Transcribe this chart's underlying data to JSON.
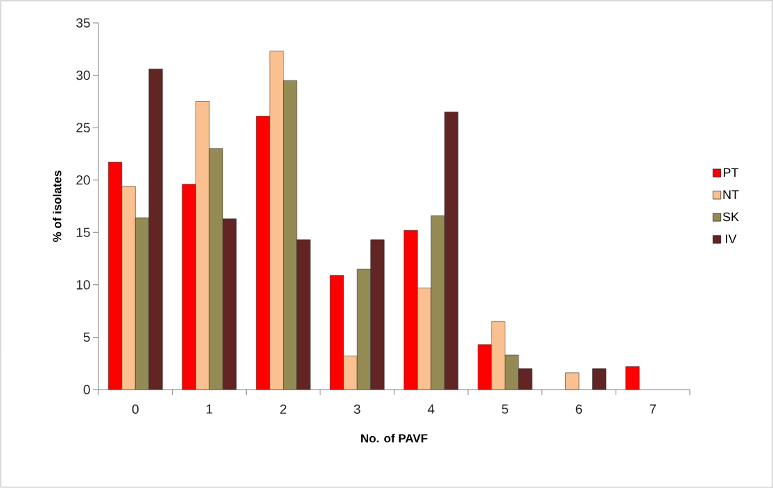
{
  "chart_data": {
    "type": "bar",
    "xlabel": "No. of PAVF",
    "ylabel": "% of isolates",
    "categories": [
      "0",
      "1",
      "2",
      "3",
      "4",
      "5",
      "6",
      "7"
    ],
    "series": [
      {
        "name": "PT",
        "color": "#ff0000",
        "values": [
          21.7,
          19.6,
          26.1,
          10.9,
          15.2,
          4.3,
          0,
          2.2
        ]
      },
      {
        "name": "NT",
        "color": "#fac090",
        "values": [
          19.4,
          27.5,
          32.3,
          3.2,
          9.7,
          6.5,
          1.6,
          0
        ]
      },
      {
        "name": "SK",
        "color": "#948a54",
        "values": [
          16.4,
          23.0,
          29.5,
          11.5,
          16.6,
          3.3,
          0,
          0
        ]
      },
      {
        "name": "IV",
        "color": "#632523",
        "values": [
          30.6,
          16.3,
          14.3,
          14.3,
          26.5,
          2.0,
          2.0,
          0
        ]
      }
    ],
    "ylim": [
      0,
      35
    ],
    "yticks": [
      0,
      5,
      10,
      15,
      20,
      25,
      30,
      35
    ],
    "grid": false,
    "legend": "right"
  }
}
